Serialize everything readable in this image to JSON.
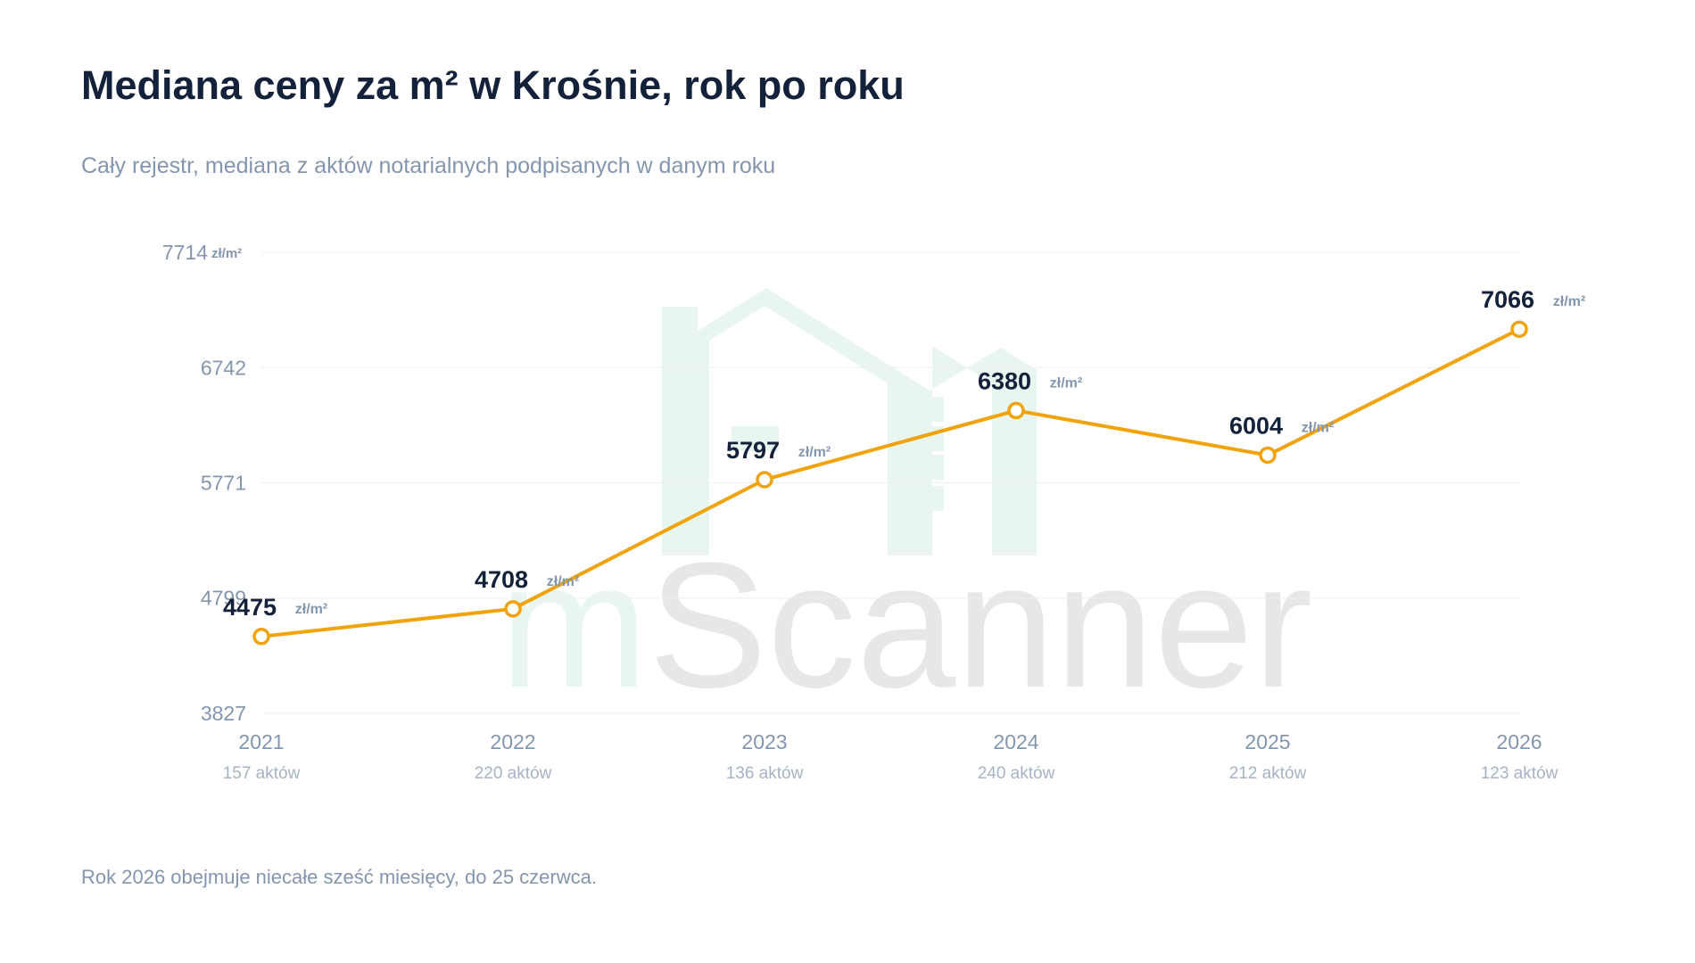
{
  "header": {
    "title": "Mediana ceny za m² w Krośnie, rok po roku",
    "subtitle": "Cały rejestr, mediana z aktów notarialnych podpisanych w danym roku"
  },
  "footnote": "Rok 2026 obejmuje niecałe sześć miesięcy, do 25 czerwca.",
  "watermark": {
    "text_m": "m",
    "text_rest": "Scanner",
    "color_m": "#e9f6f0",
    "color_rest": "#e7e7e7",
    "logo_color": "#e9f6f0"
  },
  "chart_data": {
    "type": "line",
    "title": "Mediana ceny za m² w Krośnie, rok po roku",
    "subtitle": "Cały rejestr, mediana z aktów notarialnych podpisanych w danym roku",
    "unit": "zł/m²",
    "x": [
      "2021",
      "2022",
      "2023",
      "2024",
      "2025",
      "2026"
    ],
    "x_sublabels": [
      "157 aktów",
      "220 aktów",
      "136 aktów",
      "240 aktów",
      "212 aktów",
      "123 aktów"
    ],
    "series": [
      {
        "values": [
          4475,
          4708,
          5797,
          6380,
          6004,
          7066
        ],
        "color": "#f0a30a"
      }
    ],
    "yticks": [
      3827,
      4799,
      5771,
      6742,
      7714
    ],
    "ylim": [
      3827,
      7714
    ],
    "grid": true,
    "legend": "none"
  }
}
